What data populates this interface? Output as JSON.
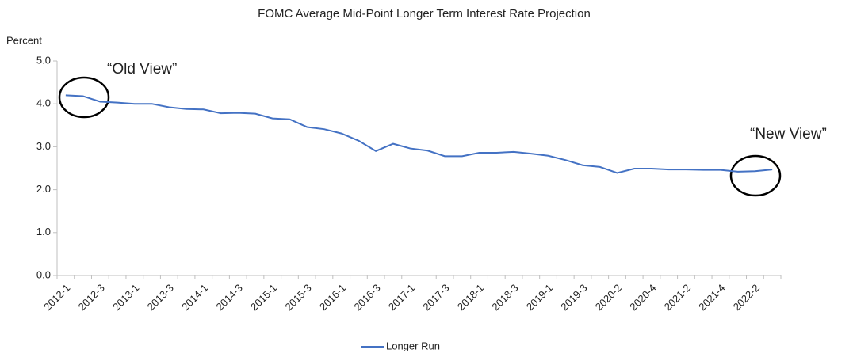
{
  "chart_data": {
    "type": "line",
    "title": "FOMC Average Mid-Point Longer Term Interest Rate Projection",
    "y_label": "Percent",
    "annotations": [
      "“Old View”",
      "“New View”"
    ],
    "categories": [
      "2012-1",
      null,
      "2012-3",
      null,
      "2013-1",
      null,
      "2013-3",
      null,
      "2014-1",
      null,
      "2014-3",
      null,
      "2015-1",
      null,
      "2015-3",
      null,
      "2016-1",
      null,
      "2016-3",
      null,
      "2017-1",
      null,
      "2017-3",
      null,
      "2018-1",
      null,
      "2018-3",
      null,
      "2019-1",
      null,
      "2019-3",
      null,
      "2020-2",
      null,
      "2020-4",
      null,
      "2021-2",
      null,
      "2021-4",
      null,
      "2022-2",
      null
    ],
    "series": [
      {
        "name": "Longer Run",
        "color": "#4472c4",
        "values": [
          4.2,
          4.18,
          4.05,
          4.03,
          4.0,
          4.0,
          3.92,
          3.88,
          3.87,
          3.78,
          3.79,
          3.77,
          3.66,
          3.64,
          3.46,
          3.41,
          3.31,
          3.14,
          2.9,
          3.07,
          2.96,
          2.91,
          2.78,
          2.78,
          2.86,
          2.86,
          2.88,
          2.84,
          2.79,
          2.69,
          2.57,
          2.53,
          2.39,
          2.49,
          2.49,
          2.47,
          2.47,
          2.46,
          2.46,
          2.42,
          2.43,
          2.47
        ]
      }
    ],
    "ylim": [
      0,
      5
    ],
    "yticks": [
      {
        "value": 0,
        "label": "0.0"
      },
      {
        "value": 1,
        "label": "1.0"
      },
      {
        "value": 2,
        "label": "2.0"
      },
      {
        "value": 3,
        "label": "3.0"
      },
      {
        "value": 4,
        "label": "4.0"
      },
      {
        "value": 5,
        "label": "5.0"
      }
    ],
    "grid": false,
    "legend": "bottom"
  }
}
